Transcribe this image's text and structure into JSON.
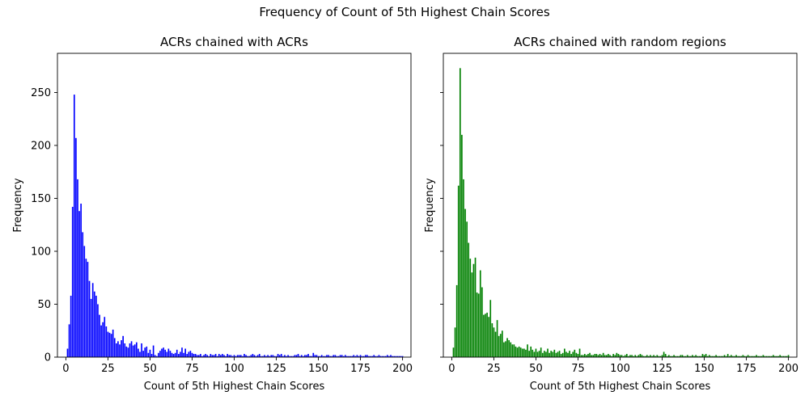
{
  "figure_title": "Frequency of Count of 5th Highest Chain Scores",
  "chart_data": [
    {
      "type": "bar",
      "title": "ACRs chained with ACRs",
      "xlabel": "Count of 5th Highest Chain Scores",
      "ylabel": "Frequency",
      "xlim": [
        -5,
        205
      ],
      "ylim": [
        0,
        287
      ],
      "xticks": [
        0,
        25,
        50,
        75,
        100,
        125,
        150,
        175,
        200
      ],
      "yticks": [
        0,
        50,
        100,
        150,
        200,
        250
      ],
      "color": "#0000ff",
      "grid": false,
      "legend": false,
      "x": [
        1,
        2,
        3,
        4,
        5,
        6,
        7,
        8,
        9,
        10,
        11,
        12,
        13,
        14,
        15,
        16,
        17,
        18,
        19,
        20,
        21,
        22,
        23,
        24,
        25,
        26,
        27,
        28,
        29,
        30,
        31,
        32,
        33,
        34,
        35,
        36,
        37,
        38,
        39,
        40,
        41,
        42,
        43,
        44,
        45,
        46,
        47,
        48,
        49,
        50,
        51,
        52,
        53,
        54,
        55,
        56,
        57,
        58,
        59,
        60,
        61,
        62,
        63,
        64,
        65,
        66,
        67,
        68,
        69,
        70,
        71,
        72,
        73,
        74,
        75,
        76,
        77,
        78,
        79,
        80,
        81,
        82,
        83,
        84,
        85,
        86,
        87,
        88,
        89,
        90,
        91,
        92,
        93,
        94,
        95,
        96,
        97,
        98,
        99,
        100,
        101,
        102,
        103,
        104,
        105,
        106,
        107,
        108,
        109,
        110,
        111,
        112,
        113,
        114,
        115,
        116,
        117,
        118,
        119,
        120,
        121,
        122,
        123,
        124,
        125,
        126,
        127,
        128,
        129,
        130,
        131,
        132,
        133,
        134,
        135,
        136,
        137,
        138,
        139,
        140,
        141,
        142,
        143,
        144,
        145,
        146,
        147,
        148,
        149,
        150,
        151,
        152,
        153,
        154,
        155,
        156,
        157,
        158,
        159,
        160,
        161,
        162,
        163,
        164,
        165,
        166,
        167,
        168,
        169,
        170,
        171,
        172,
        173,
        174,
        175,
        176,
        177,
        178,
        179,
        180,
        181,
        182,
        183,
        184,
        185,
        186,
        187,
        188,
        189,
        190,
        191,
        192,
        193,
        194,
        195,
        196,
        197,
        198,
        199,
        200
      ],
      "values": [
        8,
        31,
        58,
        142,
        248,
        207,
        168,
        138,
        145,
        118,
        105,
        93,
        90,
        72,
        55,
        70,
        62,
        58,
        50,
        40,
        30,
        33,
        38,
        29,
        24,
        23,
        22,
        26,
        18,
        13,
        15,
        12,
        16,
        20,
        13,
        10,
        9,
        13,
        15,
        11,
        12,
        14,
        8,
        5,
        13,
        6,
        9,
        10,
        4,
        7,
        3,
        11,
        2,
        1,
        4,
        6,
        8,
        9,
        7,
        5,
        8,
        6,
        4,
        3,
        4,
        7,
        3,
        5,
        9,
        4,
        8,
        3,
        5,
        6,
        4,
        3,
        3,
        2,
        2,
        3,
        1,
        2,
        3,
        2,
        1,
        3,
        2,
        2,
        3,
        1,
        3,
        2,
        3,
        2,
        1,
        3,
        2,
        2,
        1,
        2,
        1,
        2,
        2,
        2,
        1,
        3,
        2,
        1,
        1,
        2,
        3,
        2,
        1,
        2,
        3,
        1,
        1,
        2,
        1,
        2,
        1,
        2,
        2,
        1,
        1,
        3,
        2,
        3,
        1,
        2,
        1,
        2,
        1,
        1,
        1,
        2,
        2,
        3,
        1,
        2,
        1,
        2,
        2,
        3,
        1,
        1,
        4,
        2,
        2,
        1,
        1,
        2,
        1,
        1,
        2,
        2,
        1,
        1,
        2,
        2,
        1,
        1,
        2,
        2,
        1,
        2,
        1,
        1,
        1,
        1,
        2,
        1,
        2,
        1,
        2,
        1,
        1,
        2,
        2,
        1,
        1,
        1,
        2,
        1,
        1,
        2,
        1,
        1,
        1,
        1,
        2,
        1,
        2,
        1,
        1,
        1,
        1,
        1,
        1,
        1
      ]
    },
    {
      "type": "bar",
      "title": "ACRs chained with random regions",
      "xlabel": "Count of 5th Highest Chain Scores",
      "ylabel": "Frequency",
      "xlim": [
        -5,
        205
      ],
      "ylim": [
        0,
        287
      ],
      "xticks": [
        0,
        25,
        50,
        75,
        100,
        125,
        150,
        175,
        200
      ],
      "yticks": [
        0,
        50,
        100,
        150,
        200,
        250
      ],
      "color": "#008000",
      "grid": false,
      "legend": false,
      "x": [
        1,
        2,
        3,
        4,
        5,
        6,
        7,
        8,
        9,
        10,
        11,
        12,
        13,
        14,
        15,
        16,
        17,
        18,
        19,
        20,
        21,
        22,
        23,
        24,
        25,
        26,
        27,
        28,
        29,
        30,
        31,
        32,
        33,
        34,
        35,
        36,
        37,
        38,
        39,
        40,
        41,
        42,
        43,
        44,
        45,
        46,
        47,
        48,
        49,
        50,
        51,
        52,
        53,
        54,
        55,
        56,
        57,
        58,
        59,
        60,
        61,
        62,
        63,
        64,
        65,
        66,
        67,
        68,
        69,
        70,
        71,
        72,
        73,
        74,
        75,
        76,
        77,
        78,
        79,
        80,
        81,
        82,
        83,
        84,
        85,
        86,
        87,
        88,
        89,
        90,
        91,
        92,
        93,
        94,
        95,
        96,
        97,
        98,
        99,
        100,
        101,
        102,
        103,
        104,
        105,
        106,
        107,
        108,
        109,
        110,
        111,
        112,
        113,
        114,
        115,
        116,
        117,
        118,
        119,
        120,
        121,
        122,
        123,
        124,
        125,
        126,
        127,
        128,
        129,
        130,
        131,
        132,
        133,
        134,
        135,
        136,
        137,
        138,
        139,
        140,
        141,
        142,
        143,
        144,
        145,
        146,
        147,
        148,
        149,
        150,
        151,
        152,
        153,
        154,
        155,
        156,
        157,
        158,
        159,
        160,
        161,
        162,
        163,
        164,
        165,
        166,
        167,
        168,
        169,
        170,
        171,
        172,
        173,
        174,
        175,
        176,
        177,
        178,
        179,
        180,
        181,
        182,
        183,
        184,
        185,
        186,
        187,
        188,
        189,
        190,
        191,
        192,
        193,
        194,
        195,
        196,
        197,
        198,
        199,
        200
      ],
      "values": [
        9,
        28,
        68,
        162,
        273,
        210,
        168,
        140,
        128,
        108,
        93,
        80,
        88,
        94,
        61,
        60,
        82,
        66,
        40,
        41,
        42,
        38,
        54,
        32,
        28,
        24,
        35,
        20,
        22,
        25,
        14,
        15,
        18,
        16,
        14,
        12,
        12,
        10,
        9,
        10,
        9,
        8,
        8,
        7,
        12,
        6,
        10,
        7,
        5,
        8,
        5,
        6,
        9,
        4,
        6,
        5,
        8,
        4,
        6,
        5,
        7,
        4,
        5,
        6,
        3,
        4,
        8,
        5,
        4,
        6,
        3,
        5,
        7,
        4,
        3,
        8,
        2,
        2,
        3,
        2,
        3,
        4,
        2,
        2,
        3,
        3,
        2,
        3,
        2,
        4,
        2,
        2,
        3,
        2,
        1,
        3,
        2,
        4,
        3,
        2,
        2,
        1,
        2,
        3,
        1,
        2,
        2,
        1,
        2,
        1,
        2,
        3,
        2,
        1,
        1,
        2,
        1,
        2,
        1,
        2,
        1,
        2,
        1,
        1,
        2,
        5,
        3,
        1,
        2,
        1,
        1,
        2,
        1,
        1,
        1,
        2,
        2,
        1,
        1,
        2,
        1,
        1,
        2,
        1,
        2,
        1,
        1,
        1,
        3,
        2,
        3,
        1,
        2,
        1,
        1,
        1,
        2,
        1,
        1,
        1,
        1,
        2,
        1,
        3,
        1,
        2,
        1,
        1,
        2,
        1,
        1,
        1,
        2,
        1,
        1,
        2,
        1,
        1,
        1,
        1,
        2,
        1,
        1,
        1,
        2,
        1,
        1,
        1,
        1,
        1,
        2,
        1,
        1,
        1,
        2,
        1,
        1,
        1,
        1,
        2
      ]
    }
  ]
}
